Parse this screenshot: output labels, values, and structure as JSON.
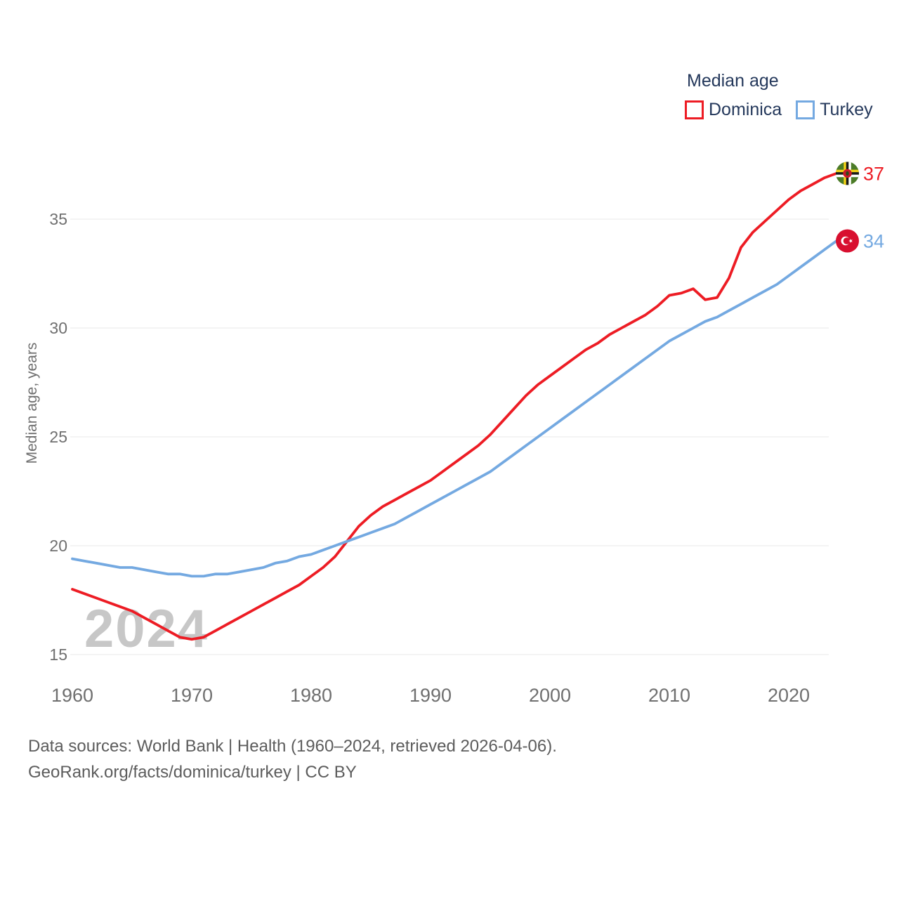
{
  "legend": {
    "title": "Median age",
    "items": [
      {
        "label": "Dominica",
        "color": "#ed1c24"
      },
      {
        "label": "Turkey",
        "color": "#74a9e1"
      }
    ]
  },
  "chart_data": {
    "type": "line",
    "title": "Median age",
    "xlabel": "",
    "ylabel": "Median age, years",
    "ylim": [
      15,
      37.5
    ],
    "y_ticks": [
      15,
      20,
      25,
      30,
      35
    ],
    "x_ticks": [
      1960,
      1970,
      1980,
      1990,
      2000,
      2010,
      2020
    ],
    "grid": true,
    "legend_position": "top-right",
    "watermark": "2024",
    "x": [
      1960,
      1961,
      1962,
      1963,
      1964,
      1965,
      1966,
      1967,
      1968,
      1969,
      1970,
      1971,
      1972,
      1973,
      1974,
      1975,
      1976,
      1977,
      1978,
      1979,
      1980,
      1981,
      1982,
      1983,
      1984,
      1985,
      1986,
      1987,
      1988,
      1989,
      1990,
      1991,
      1992,
      1993,
      1994,
      1995,
      1996,
      1997,
      1998,
      1999,
      2000,
      2001,
      2002,
      2003,
      2004,
      2005,
      2006,
      2007,
      2008,
      2009,
      2010,
      2011,
      2012,
      2013,
      2014,
      2015,
      2016,
      2017,
      2018,
      2019,
      2020,
      2021,
      2022,
      2023,
      2024
    ],
    "series": [
      {
        "name": "Dominica",
        "color": "#ed1c24",
        "end_label": "37",
        "flag": "dominica",
        "values": [
          18.0,
          17.8,
          17.6,
          17.4,
          17.2,
          17.0,
          16.7,
          16.4,
          16.1,
          15.8,
          15.7,
          15.8,
          16.1,
          16.4,
          16.7,
          17.0,
          17.3,
          17.6,
          17.9,
          18.2,
          18.6,
          19.0,
          19.5,
          20.2,
          20.9,
          21.4,
          21.8,
          22.1,
          22.4,
          22.7,
          23.0,
          23.4,
          23.8,
          24.2,
          24.6,
          25.1,
          25.7,
          26.3,
          26.9,
          27.4,
          27.8,
          28.2,
          28.6,
          29.0,
          29.3,
          29.7,
          30.0,
          30.3,
          30.6,
          31.0,
          31.5,
          31.6,
          31.8,
          31.3,
          31.4,
          32.3,
          33.7,
          34.4,
          34.9,
          35.4,
          35.9,
          36.3,
          36.6,
          36.9,
          37.1
        ]
      },
      {
        "name": "Turkey",
        "color": "#74a9e1",
        "end_label": "34",
        "flag": "turkey",
        "values": [
          19.4,
          19.3,
          19.2,
          19.1,
          19.0,
          19.0,
          18.9,
          18.8,
          18.7,
          18.7,
          18.6,
          18.6,
          18.7,
          18.7,
          18.8,
          18.9,
          19.0,
          19.2,
          19.3,
          19.5,
          19.6,
          19.8,
          20.0,
          20.2,
          20.4,
          20.6,
          20.8,
          21.0,
          21.3,
          21.6,
          21.9,
          22.2,
          22.5,
          22.8,
          23.1,
          23.4,
          23.8,
          24.2,
          24.6,
          25.0,
          25.4,
          25.8,
          26.2,
          26.6,
          27.0,
          27.4,
          27.8,
          28.2,
          28.6,
          29.0,
          29.4,
          29.7,
          30.0,
          30.3,
          30.5,
          30.8,
          31.1,
          31.4,
          31.7,
          32.0,
          32.4,
          32.8,
          33.2,
          33.6,
          34.0
        ]
      }
    ]
  },
  "footer": {
    "line1": "Data sources: World Bank | Health (1960–2024, retrieved 2026-04-06).",
    "line2": "GeoRank.org/facts/dominica/turkey | CC BY"
  },
  "colors": {
    "grid": "#e9e9e9",
    "axis_text": "#6f6f6f",
    "legend_text": "#24385b",
    "watermark": "#c7c7c7",
    "footer_text": "#5c5c5c",
    "dominica_flag_green": "#4c7c28",
    "dominica_flag_yellow": "#f5d216",
    "dominica_flag_red": "#c91a2b",
    "turkey_flag_red": "#d80f2f"
  }
}
